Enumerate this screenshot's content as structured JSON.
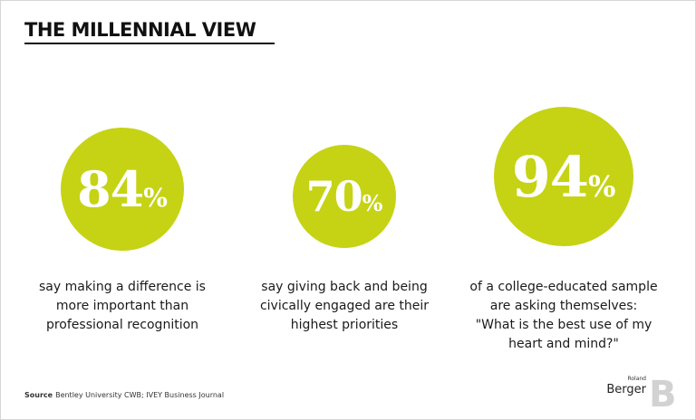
{
  "header": {
    "title": "THE MILLENNIAL VIEW"
  },
  "accent_color": "#c5d314",
  "chart_data": {
    "type": "infographic",
    "stats": [
      {
        "value": "84",
        "unit": "%",
        "lines": [
          "say making a difference is",
          "more important than",
          "professional recognition"
        ]
      },
      {
        "value": "70",
        "unit": "%",
        "lines": [
          "say giving back and being",
          "civically engaged are their",
          "highest priorities"
        ]
      },
      {
        "value": "94",
        "unit": "%",
        "lines": [
          "of a college-educated sample",
          "are asking themselves:",
          "\"What is the best use of my",
          "heart and mind?\""
        ]
      }
    ]
  },
  "footer": {
    "source_label": "Source",
    "source_text": "Bentley University CWB; IVEY Business Journal"
  },
  "logo": {
    "small_text": "Roland",
    "big_text": "Berger",
    "mark": "B"
  }
}
